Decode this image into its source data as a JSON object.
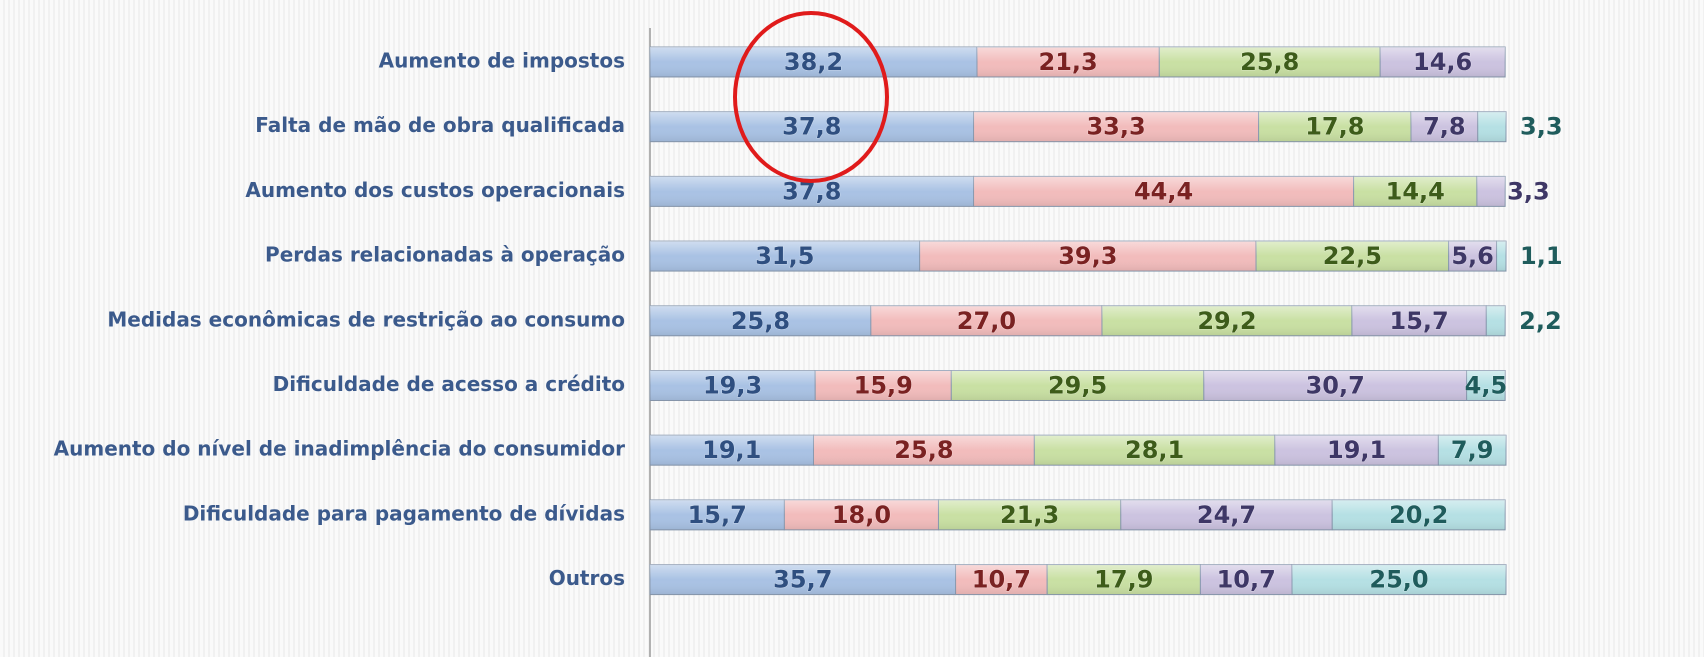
{
  "chart_data": {
    "type": "stacked-bar-horizontal",
    "categories": [
      "Aumento de impostos",
      "Falta de mão de obra qualificada",
      "Aumento dos custos operacionais",
      "Perdas relacionadas à operação",
      "Medidas econômicas de restrição ao consumo",
      "Dificuldade de acesso a crédito",
      "Aumento do nível de inadimplência do consumidor",
      "Dificuldade para pagamento de dívidas",
      "Outros"
    ],
    "series": [
      {
        "color": "#a9c2e4",
        "values": [
          38.2,
          37.8,
          37.8,
          31.5,
          25.8,
          19.3,
          19.1,
          15.7,
          35.7
        ],
        "value_labels": [
          "38,2",
          "37,8",
          "37,8",
          "31,5",
          "25,8",
          "19,3",
          "19,1",
          "15,7",
          "35,7"
        ]
      },
      {
        "color": "#f2bcbc",
        "values": [
          21.3,
          33.3,
          44.4,
          39.3,
          27.0,
          15.9,
          25.8,
          18.0,
          10.7
        ],
        "value_labels": [
          "21,3",
          "33,3",
          "44,4",
          "39,3",
          "27,0",
          "15,9",
          "25,8",
          "18,0",
          "10,7"
        ]
      },
      {
        "color": "#c9e0a3",
        "values": [
          25.8,
          17.8,
          14.4,
          22.5,
          29.2,
          29.5,
          28.1,
          21.3,
          17.9
        ],
        "value_labels": [
          "25,8",
          "17,8",
          "14,4",
          "22,5",
          "29,2",
          "29,5",
          "28,1",
          "21,3",
          "17,9"
        ]
      },
      {
        "color": "#ccc3e0",
        "values": [
          14.6,
          7.8,
          3.3,
          5.6,
          15.7,
          30.7,
          19.1,
          24.7,
          10.7
        ],
        "value_labels": [
          "14,6",
          "7,8",
          "3,3",
          "5,6",
          "15,7",
          "30,7",
          "19,1",
          "24,7",
          "10,7"
        ]
      },
      {
        "color": "#b5e0e4",
        "values": [
          null,
          3.3,
          null,
          1.1,
          2.2,
          4.5,
          7.9,
          20.2,
          25.0
        ],
        "value_labels": [
          null,
          "3,3",
          null,
          "1,1",
          "2,2",
          "4,5",
          "7,9",
          "20,2",
          "25,0"
        ]
      }
    ],
    "label_colors": [
      "#2f4f80",
      "#7a2222",
      "#3d5c1a",
      "#3e3766",
      "#1f5c5c"
    ],
    "xlim": [
      0,
      100
    ]
  }
}
